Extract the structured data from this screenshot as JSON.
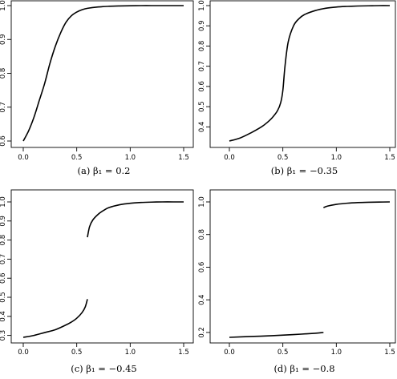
{
  "chart_data": [
    {
      "type": "line",
      "caption": "(a) β₁ = 0.2",
      "xlim": [
        0,
        1.5
      ],
      "ylim": [
        0.6,
        1.0
      ],
      "xticks": [
        0.0,
        0.5,
        1.0,
        1.5
      ],
      "xtick_labels": [
        "0.0",
        "0.5",
        "1.0",
        "1.5"
      ],
      "yticks": [
        0.6,
        0.7,
        0.8,
        0.9,
        1.0
      ],
      "ytick_labels": [
        "0.6",
        "0.7",
        "0.8",
        "0.9",
        "1.0"
      ],
      "segments": [
        {
          "x": [
            0.0,
            0.05,
            0.1,
            0.15,
            0.2,
            0.25,
            0.3,
            0.35,
            0.4,
            0.45,
            0.5,
            0.55,
            0.6,
            0.7,
            0.8,
            0.9,
            1.0,
            1.1,
            1.2,
            1.3,
            1.4,
            1.5
          ],
          "y": [
            0.6,
            0.63,
            0.67,
            0.72,
            0.77,
            0.83,
            0.88,
            0.92,
            0.951,
            0.97,
            0.981,
            0.988,
            0.992,
            0.996,
            0.998,
            0.999,
            0.9995,
            1.0,
            1.0,
            1.0,
            1.0,
            1.0
          ]
        }
      ]
    },
    {
      "type": "line",
      "caption": "(b) β₁ = −0.35",
      "xlim": [
        0,
        1.5
      ],
      "ylim": [
        0.33,
        1.0
      ],
      "xticks": [
        0.0,
        0.5,
        1.0,
        1.5
      ],
      "xtick_labels": [
        "0.0",
        "0.5",
        "1.0",
        "1.5"
      ],
      "yticks": [
        0.4,
        0.5,
        0.6,
        0.7,
        0.8,
        0.9,
        1.0
      ],
      "ytick_labels": [
        "0.4",
        "0.5",
        "0.6",
        "0.7",
        "0.8",
        "0.9",
        "1.0"
      ],
      "segments": [
        {
          "x": [
            0.0,
            0.1,
            0.2,
            0.3,
            0.35,
            0.4,
            0.45,
            0.48,
            0.5,
            0.52,
            0.55,
            0.6,
            0.65,
            0.7,
            0.8,
            0.9,
            1.0,
            1.1,
            1.2,
            1.3,
            1.4,
            1.5
          ],
          "y": [
            0.33,
            0.345,
            0.37,
            0.4,
            0.42,
            0.445,
            0.48,
            0.52,
            0.58,
            0.7,
            0.82,
            0.9,
            0.935,
            0.955,
            0.975,
            0.987,
            0.993,
            0.996,
            0.998,
            0.999,
            1.0,
            1.0
          ]
        }
      ]
    },
    {
      "type": "line",
      "caption": "(c) β₁ = −0.45",
      "xlim": [
        0,
        1.5
      ],
      "ylim": [
        0.29,
        1.0
      ],
      "xticks": [
        0.0,
        0.5,
        1.0,
        1.5
      ],
      "xtick_labels": [
        "0.0",
        "0.5",
        "1.0",
        "1.5"
      ],
      "yticks": [
        0.3,
        0.4,
        0.5,
        0.6,
        0.7,
        0.8,
        0.9,
        1.0
      ],
      "ytick_labels": [
        "0.3",
        "0.4",
        "0.5",
        "0.6",
        "0.7",
        "0.8",
        "0.9",
        "1.0"
      ],
      "segments": [
        {
          "x": [
            0.0,
            0.1,
            0.2,
            0.3,
            0.4,
            0.45,
            0.5,
            0.55,
            0.58,
            0.6
          ],
          "y": [
            0.29,
            0.3,
            0.315,
            0.33,
            0.355,
            0.37,
            0.39,
            0.42,
            0.45,
            0.49
          ]
        },
        {
          "x": [
            0.6,
            0.62,
            0.65,
            0.7,
            0.75,
            0.8,
            0.9,
            1.0,
            1.1,
            1.2,
            1.3,
            1.4,
            1.5
          ],
          "y": [
            0.815,
            0.87,
            0.905,
            0.935,
            0.955,
            0.97,
            0.985,
            0.993,
            0.997,
            0.999,
            1.0,
            1.0,
            1.0
          ]
        }
      ]
    },
    {
      "type": "line",
      "caption": "(d) β₁ = −0.8",
      "xlim": [
        0,
        1.5
      ],
      "ylim": [
        0.17,
        1.0
      ],
      "xticks": [
        0.0,
        0.5,
        1.0,
        1.5
      ],
      "xtick_labels": [
        "0.0",
        "0.5",
        "1.0",
        "1.5"
      ],
      "yticks": [
        0.2,
        0.4,
        0.6,
        0.8,
        1.0
      ],
      "ytick_labels": [
        "0.2",
        "0.4",
        "0.6",
        "0.8",
        "1.0"
      ],
      "segments": [
        {
          "x": [
            0.0,
            0.2,
            0.4,
            0.6,
            0.8,
            0.88
          ],
          "y": [
            0.17,
            0.175,
            0.18,
            0.187,
            0.195,
            0.2
          ]
        },
        {
          "x": [
            0.88,
            0.92,
            1.0,
            1.1,
            1.2,
            1.3,
            1.4,
            1.5
          ],
          "y": [
            0.965,
            0.975,
            0.985,
            0.992,
            0.996,
            0.998,
            0.999,
            1.0
          ]
        }
      ]
    }
  ]
}
